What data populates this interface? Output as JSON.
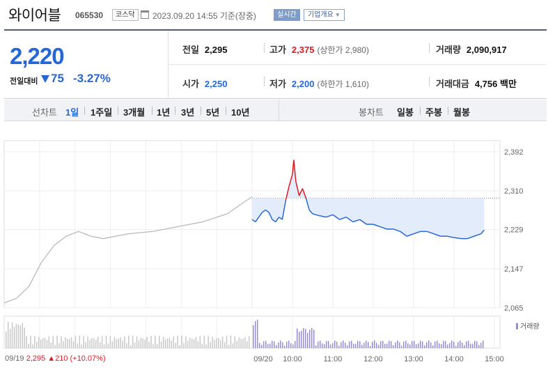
{
  "stock": {
    "name": "와이어블",
    "code": "065530",
    "market": "코스닥",
    "timestamp": "2023.09.20 14:55  기준(장중)",
    "realtime_label": "실시간",
    "company_label": "기업개요"
  },
  "quote": {
    "price": "2,220",
    "change_label": "전일대비",
    "change_amount": "75",
    "change_rate": "-3.27%",
    "direction": "down",
    "prev_close_label": "전일",
    "prev_close": "2,295",
    "high_label": "고가",
    "high": "2,375",
    "upper_limit": "(상한가 2,980)",
    "volume_label": "거래량",
    "volume": "2,090,917",
    "open_label": "시가",
    "open": "2,250",
    "low_label": "저가",
    "low": "2,200",
    "lower_limit": "(하한가 1,610)",
    "amount_label": "거래대금",
    "amount": "4,756 백만"
  },
  "period_bar": {
    "line_title": "선차트",
    "line_options": [
      "1일",
      "1주일",
      "3개월",
      "1년",
      "3년",
      "5년",
      "10년"
    ],
    "line_selected": "1일",
    "candle_title": "봉차트",
    "candle_options": [
      "일봉",
      "주봉",
      "월봉"
    ]
  },
  "chart_data": {
    "type": "line",
    "y_ticks": [
      "2,392",
      "2,310",
      "2,229",
      "2,147",
      "2,065"
    ],
    "ylim": [
      2065,
      2392
    ],
    "x_ticks": [
      "09/20",
      "10:00",
      "11:00",
      "12:00",
      "13:00",
      "14:00",
      "15:00"
    ],
    "prev_day_label": "09/19",
    "prev_close_reference": 2295,
    "prev_day_summary": {
      "close": "2,295",
      "change": "▲210",
      "rate": "(+10.07%)"
    },
    "prev_day_series": [
      [
        0,
        2075
      ],
      [
        0.05,
        2085
      ],
      [
        0.1,
        2110
      ],
      [
        0.15,
        2160
      ],
      [
        0.2,
        2195
      ],
      [
        0.25,
        2215
      ],
      [
        0.3,
        2225
      ],
      [
        0.35,
        2215
      ],
      [
        0.4,
        2210
      ],
      [
        0.5,
        2220
      ],
      [
        0.6,
        2225
      ],
      [
        0.7,
        2235
      ],
      [
        0.8,
        2245
      ],
      [
        0.9,
        2262
      ],
      [
        1.0,
        2298
      ]
    ],
    "series": [
      {
        "name": "",
        "color": "#2567d6",
        "points": [
          [
            "09:00",
            2250
          ],
          [
            "09:05",
            2245
          ],
          [
            "09:10",
            2255
          ],
          [
            "09:15",
            2265
          ],
          [
            "09:20",
            2270
          ],
          [
            "09:25",
            2265
          ],
          [
            "09:30",
            2250
          ],
          [
            "09:35",
            2245
          ],
          [
            "09:40",
            2255
          ],
          [
            "09:45",
            2250
          ],
          [
            "09:50",
            2290
          ],
          [
            "09:55",
            2320
          ],
          [
            "10:00",
            2345
          ],
          [
            "10:02",
            2375
          ],
          [
            "10:05",
            2330
          ],
          [
            "10:10",
            2300
          ],
          [
            "10:15",
            2315
          ],
          [
            "10:20",
            2295
          ],
          [
            "10:25",
            2270
          ],
          [
            "10:30",
            2262
          ],
          [
            "10:40",
            2258
          ],
          [
            "10:50",
            2255
          ],
          [
            "11:00",
            2260
          ],
          [
            "11:10",
            2250
          ],
          [
            "11:20",
            2255
          ],
          [
            "11:30",
            2245
          ],
          [
            "11:40",
            2250
          ],
          [
            "11:50",
            2240
          ],
          [
            "12:00",
            2240
          ],
          [
            "12:10",
            2235
          ],
          [
            "12:20",
            2230
          ],
          [
            "12:30",
            2230
          ],
          [
            "12:40",
            2225
          ],
          [
            "12:50",
            2215
          ],
          [
            "13:00",
            2220
          ],
          [
            "13:10",
            2225
          ],
          [
            "13:20",
            2225
          ],
          [
            "13:30",
            2220
          ],
          [
            "13:40",
            2215
          ],
          [
            "13:50",
            2215
          ],
          [
            "14:00",
            2212
          ],
          [
            "14:10",
            2210
          ],
          [
            "14:20",
            2210
          ],
          [
            "14:30",
            2215
          ],
          [
            "14:40",
            2220
          ],
          [
            "14:45",
            2228
          ]
        ]
      }
    ],
    "volume_legend": "거래량"
  }
}
